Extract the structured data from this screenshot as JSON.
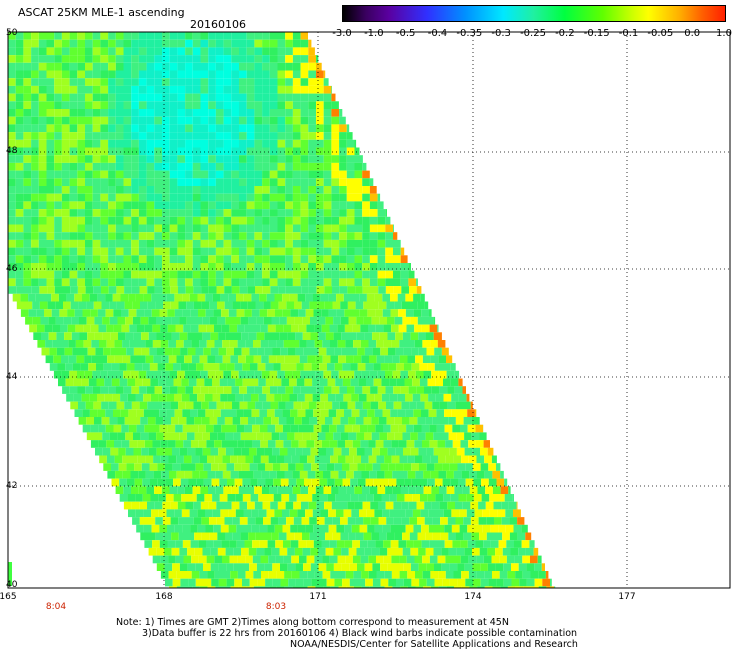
{
  "header": {
    "title": "ASCAT 25KM MLE-1 ascending",
    "date": "20160106"
  },
  "colorbar": {
    "labels": [
      "-3.0",
      "-1.0",
      "-0.5",
      "-0.4",
      "-0.35",
      "-0.3",
      "-0.25",
      "-0.2",
      "-0.15",
      "-0.1",
      "-0.05",
      "0.0",
      "1.0"
    ],
    "colors": [
      "#000000",
      "#5a0090",
      "#2040ff",
      "#00aaff",
      "#00f0ff",
      "#30e8a0",
      "#00ff40",
      "#40ff00",
      "#a0ff00",
      "#ffff00",
      "#ffc000",
      "#ff7000",
      "#ff2000"
    ]
  },
  "map": {
    "lon_labels": [
      "165",
      "168",
      "171",
      "174",
      "177"
    ],
    "lat_labels": [
      "50",
      "48",
      "46",
      "44",
      "42",
      "40"
    ],
    "time_labels": [
      "8:04",
      "8:03"
    ],
    "grid_lines": true
  },
  "footer": {
    "line1": "Note: 1) Times are GMT 2)Times along bottom correspond to measurement at 45N",
    "line2": "3)Data buffer is 22 hrs from 20160106 4) Black wind barbs indicate possible contamination",
    "line3": "NOAA/NESDIS/Center for Satellite Applications and Research"
  }
}
